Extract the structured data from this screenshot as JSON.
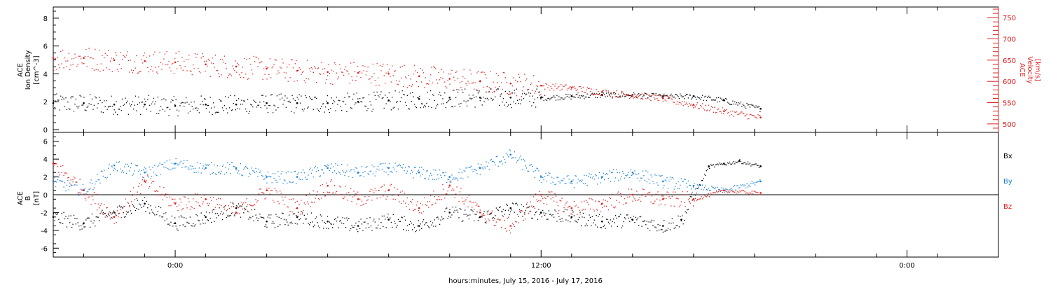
{
  "chart_data": [
    {
      "type": "scatter",
      "panel": "top",
      "ylabel_left": [
        "ACE",
        "Ion Density",
        "[cm^-3]"
      ],
      "ylabel_right": [
        "ACE",
        "Velocity",
        "[km/s]"
      ],
      "ylim_left": [
        -0.2,
        8.8
      ],
      "yticks_left": [
        "0",
        "2",
        "4",
        "6",
        "8"
      ],
      "ylim_right": [
        480,
        775
      ],
      "yticks_right": [
        "500",
        "550",
        "600",
        "650",
        "700",
        "750"
      ],
      "right_axis_color": "#e0201f",
      "series": [
        {
          "name": "Ion Density",
          "color": "#000000",
          "axis": "left",
          "x": [
            -4,
            -3,
            -2,
            -1,
            0,
            1,
            2,
            3,
            4,
            5,
            6,
            7,
            8,
            9,
            10,
            11,
            12,
            13,
            14,
            15,
            16,
            17,
            18,
            19.2
          ],
          "y": [
            1.9,
            1.9,
            1.8,
            1.8,
            1.7,
            1.8,
            1.8,
            1.9,
            1.9,
            1.9,
            2.0,
            2.1,
            2.2,
            2.3,
            2.3,
            2.3,
            2.3,
            2.4,
            2.5,
            2.5,
            2.4,
            2.4,
            2.1,
            1.5
          ]
        },
        {
          "name": "Velocity",
          "color": "#e0201f",
          "axis": "right",
          "x": [
            -4,
            -3,
            -2,
            -1,
            0,
            1,
            2,
            3,
            4,
            5,
            6,
            7,
            8,
            9,
            10,
            11,
            12,
            13,
            14,
            15,
            16,
            17,
            18,
            19.2
          ],
          "y": [
            655,
            655,
            650,
            648,
            645,
            640,
            635,
            630,
            625,
            622,
            620,
            618,
            612,
            606,
            600,
            595,
            590,
            585,
            575,
            568,
            560,
            545,
            530,
            515
          ]
        }
      ]
    },
    {
      "type": "scatter",
      "panel": "bottom",
      "ylabel": [
        "ACE",
        "B",
        "[nT]"
      ],
      "ylim": [
        -7,
        7
      ],
      "yticks": [
        "-6",
        "-4",
        "-2",
        "0",
        "2",
        "4",
        "6"
      ],
      "series": [
        {
          "name": "Bx",
          "color": "#000000",
          "x": [
            -4,
            -3,
            -2,
            -1,
            0,
            1,
            2,
            3,
            4,
            5,
            6,
            7,
            8,
            9,
            10,
            11,
            12,
            13,
            14,
            15,
            16,
            16.6,
            17.5,
            18,
            18.5,
            19.2
          ],
          "y": [
            -2.5,
            -3.2,
            -2.0,
            -1.0,
            -3.2,
            -2.5,
            -1.5,
            -3.0,
            -2.5,
            -3.0,
            -3.5,
            -2.8,
            -3.5,
            -2.0,
            -2.5,
            -1.5,
            -2.0,
            -2.5,
            -3.0,
            -2.8,
            -3.5,
            -2.8,
            3.2,
            3.5,
            3.8,
            3.2
          ]
        },
        {
          "name": "By",
          "color": "#1a7fd4",
          "x": [
            -4,
            -3,
            -2,
            -1,
            0,
            1,
            2,
            3,
            4,
            5,
            6,
            7,
            8,
            9,
            10,
            11,
            12,
            13,
            14,
            15,
            16,
            17,
            18,
            19.2
          ],
          "y": [
            1.5,
            0.5,
            3.3,
            2.5,
            3.5,
            3.0,
            3.0,
            2.0,
            2.0,
            3.0,
            2.5,
            3.0,
            2.5,
            2.0,
            3.0,
            4.5,
            2.0,
            1.5,
            2.0,
            2.5,
            1.5,
            1.0,
            0.5,
            1.5
          ]
        },
        {
          "name": "Bz",
          "color": "#e0201f",
          "x": [
            -4,
            -3,
            -2,
            -1,
            0,
            1,
            2,
            3,
            4,
            5,
            6,
            7,
            8,
            9,
            10,
            11,
            12,
            13,
            14,
            15,
            16,
            17,
            18,
            19.2
          ],
          "y": [
            3.5,
            0.5,
            -2.5,
            1.5,
            -1.0,
            -0.5,
            -2.0,
            0.5,
            -1.5,
            1.0,
            -0.5,
            0.5,
            -1.5,
            1.0,
            -2.0,
            -3.5,
            0.0,
            -1.5,
            -1.0,
            0.0,
            -0.5,
            -0.5,
            0.5,
            0.2
          ]
        }
      ],
      "legend": [
        "Bx",
        "By",
        "Bz"
      ]
    }
  ],
  "shared_x_axis": {
    "xlim": [
      -4,
      27
    ],
    "ticks": [
      {
        "x": 0,
        "label": "0:00"
      },
      {
        "x": 12,
        "label": "12:00"
      },
      {
        "x": 24,
        "label": "0:00"
      }
    ],
    "xlabel": "hours:minutes, July 15, 2016 - July 17, 2016"
  }
}
